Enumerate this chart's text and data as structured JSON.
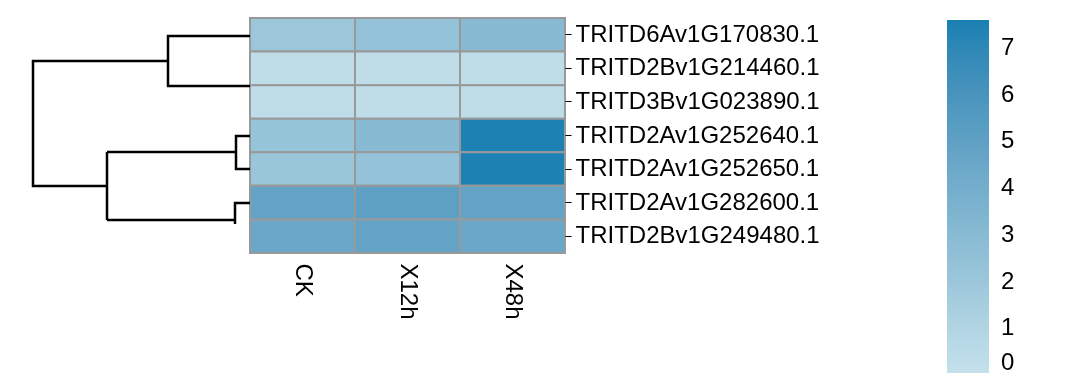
{
  "chart_data": {
    "type": "heatmap",
    "categories": [
      "CK",
      "X12h",
      "X48h"
    ],
    "y_categories": [
      "TRITD6Av1G170830.1",
      "TRITD2Bv1G214460.1",
      "TRITD3Bv1G023890.1",
      "TRITD2Av1G252640.1",
      "TRITD2Av1G252650.1",
      "TRITD2Av1G282600.1",
      "TRITD2Bv1G249480.1"
    ],
    "cells": [
      [
        2.0,
        2.4,
        3.0
      ],
      [
        0.3,
        0.3,
        0.3
      ],
      [
        0.3,
        0.3,
        0.3
      ],
      [
        2.3,
        3.0,
        7.5
      ],
      [
        2.1,
        2.4,
        7.5
      ],
      [
        4.8,
        5.1,
        4.8
      ],
      [
        4.5,
        4.8,
        4.5
      ]
    ],
    "clim": [
      0,
      7.6
    ],
    "cticks": [
      0,
      1,
      2,
      3,
      4,
      5,
      6,
      7
    ],
    "colors": [
      "#c5e1ec",
      "#1880b2"
    ]
  }
}
